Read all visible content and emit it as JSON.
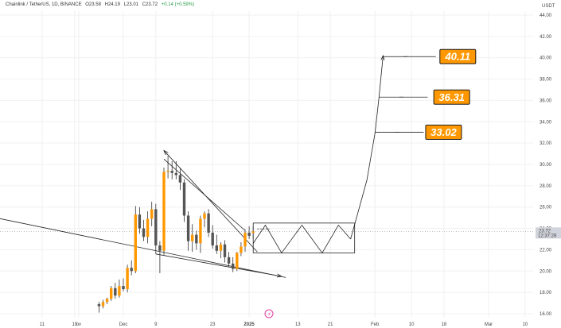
{
  "header": {
    "symbol": "Chainlink / TetherUS, 1D, BINANCE",
    "open": "O23.58",
    "high": "H24.19",
    "low": "L23.01",
    "close": "C23.72",
    "change": "+0.14 (+0.59%)"
  },
  "colors": {
    "up": "#ff9800",
    "down": "#555555",
    "wick": "#333333",
    "line": "#222222",
    "target_fill": "#ff9800",
    "target_border": "#1a1a1a",
    "grid": "#f0f0f0",
    "last_price_bg": "#d1d4dc",
    "event_icon": "#e040a0"
  },
  "chart_data": {
    "type": "candlestick",
    "currency_label": "USDT",
    "ylim": [
      16,
      44
    ],
    "y_ticks": [
      "16.00",
      "18.00",
      "20.00",
      "22.00",
      "24.00",
      "26.00",
      "28.00",
      "30.00",
      "32.00",
      "34.00",
      "36.00",
      "38.00",
      "40.00",
      "42.00",
      "44.00"
    ],
    "x_ticks": [
      {
        "label": "ov",
        "day": -11
      },
      {
        "label": "11",
        "day": -20
      },
      {
        "label": "19",
        "day": -12
      },
      {
        "label": "Dec",
        "day": 0
      },
      {
        "label": "9",
        "day": 8
      },
      {
        "label": "23",
        "day": 22
      },
      {
        "label": "2025",
        "day": 31,
        "bold": true
      },
      {
        "label": "13",
        "day": 43
      },
      {
        "label": "21",
        "day": 51
      },
      {
        "label": "Feb",
        "day": 62
      },
      {
        "label": "10",
        "day": 71
      },
      {
        "label": "18",
        "day": 79
      },
      {
        "label": "Mar",
        "day": 90
      },
      {
        "label": "10",
        "day": 99
      }
    ],
    "last_price": {
      "value": "23.72",
      "countdown": "12:37:28"
    },
    "candles": [
      {
        "day": -6,
        "o": 16.9,
        "h": 17.1,
        "l": 16.1,
        "c": 16.7
      },
      {
        "day": -5,
        "o": 16.7,
        "h": 17.3,
        "l": 16.5,
        "c": 17.1
      },
      {
        "day": -4,
        "o": 17.1,
        "h": 17.5,
        "l": 16.9,
        "c": 17.4
      },
      {
        "day": -3,
        "o": 17.4,
        "h": 18.6,
        "l": 17.2,
        "c": 18.4
      },
      {
        "day": -2,
        "o": 18.4,
        "h": 18.9,
        "l": 17.4,
        "c": 17.7
      },
      {
        "day": -1,
        "o": 17.7,
        "h": 19.2,
        "l": 17.5,
        "c": 18.6
      },
      {
        "day": 0,
        "o": 18.6,
        "h": 19.3,
        "l": 18.1,
        "c": 18.3
      },
      {
        "day": 1,
        "o": 18.3,
        "h": 20.6,
        "l": 18.0,
        "c": 20.3
      },
      {
        "day": 2,
        "o": 20.3,
        "h": 21.0,
        "l": 19.6,
        "c": 20.0
      },
      {
        "day": 3,
        "o": 20.0,
        "h": 26.1,
        "l": 19.8,
        "c": 25.3
      },
      {
        "day": 4,
        "o": 25.3,
        "h": 26.0,
        "l": 23.5,
        "c": 24.0
      },
      {
        "day": 5,
        "o": 24.0,
        "h": 24.8,
        "l": 22.8,
        "c": 23.2
      },
      {
        "day": 6,
        "o": 23.2,
        "h": 25.6,
        "l": 22.6,
        "c": 24.9
      },
      {
        "day": 7,
        "o": 24.9,
        "h": 26.5,
        "l": 24.2,
        "c": 25.8
      },
      {
        "day": 8,
        "o": 25.8,
        "h": 26.3,
        "l": 21.6,
        "c": 22.4
      },
      {
        "day": 9,
        "o": 22.4,
        "h": 22.8,
        "l": 19.8,
        "c": 21.9
      },
      {
        "day": 10,
        "o": 21.9,
        "h": 29.7,
        "l": 21.5,
        "c": 29.3
      },
      {
        "day": 11,
        "o": 29.3,
        "h": 30.8,
        "l": 28.7,
        "c": 29.4
      },
      {
        "day": 12,
        "o": 29.4,
        "h": 30.3,
        "l": 28.6,
        "c": 29.2
      },
      {
        "day": 13,
        "o": 29.2,
        "h": 30.3,
        "l": 28.6,
        "c": 29.0
      },
      {
        "day": 14,
        "o": 29.0,
        "h": 29.6,
        "l": 27.6,
        "c": 28.3
      },
      {
        "day": 15,
        "o": 28.3,
        "h": 28.6,
        "l": 24.6,
        "c": 25.2
      },
      {
        "day": 16,
        "o": 25.2,
        "h": 25.6,
        "l": 21.9,
        "c": 22.8
      },
      {
        "day": 17,
        "o": 22.8,
        "h": 24.4,
        "l": 21.8,
        "c": 23.4
      },
      {
        "day": 18,
        "o": 23.4,
        "h": 23.8,
        "l": 22.0,
        "c": 22.6
      },
      {
        "day": 19,
        "o": 22.6,
        "h": 25.2,
        "l": 21.7,
        "c": 24.9
      },
      {
        "day": 20,
        "o": 24.9,
        "h": 25.6,
        "l": 24.1,
        "c": 25.4
      },
      {
        "day": 21,
        "o": 25.4,
        "h": 25.8,
        "l": 23.2,
        "c": 23.6
      },
      {
        "day": 22,
        "o": 23.6,
        "h": 24.3,
        "l": 22.1,
        "c": 22.4
      },
      {
        "day": 23,
        "o": 22.4,
        "h": 23.4,
        "l": 21.6,
        "c": 21.9
      },
      {
        "day": 24,
        "o": 21.9,
        "h": 22.7,
        "l": 21.2,
        "c": 22.5
      },
      {
        "day": 25,
        "o": 22.5,
        "h": 22.9,
        "l": 20.8,
        "c": 21.3
      },
      {
        "day": 26,
        "o": 21.3,
        "h": 21.8,
        "l": 20.4,
        "c": 20.7
      },
      {
        "day": 27,
        "o": 20.7,
        "h": 21.3,
        "l": 19.9,
        "c": 20.2
      },
      {
        "day": 28,
        "o": 20.2,
        "h": 21.8,
        "l": 20.0,
        "c": 21.7
      },
      {
        "day": 29,
        "o": 21.7,
        "h": 22.7,
        "l": 21.4,
        "c": 22.3
      },
      {
        "day": 30,
        "o": 22.3,
        "h": 23.9,
        "l": 21.8,
        "c": 23.6
      },
      {
        "day": 31,
        "o": 23.6,
        "h": 24.2,
        "l": 23.0,
        "c": 23.3
      },
      {
        "day": 32,
        "o": 23.58,
        "h": 24.19,
        "l": 23.01,
        "c": 23.72
      }
    ],
    "targets": [
      "40.11",
      "36.31",
      "33.02"
    ],
    "annotations": {
      "upper_trendline": [
        [
          10,
          30.5
        ],
        [
          30,
          23.8
        ]
      ],
      "upper_arrow": [
        [
          33,
          21.8
        ],
        [
          10,
          31.3
        ]
      ],
      "lower_trendline": [
        [
          -43,
          25.9
        ],
        [
          40,
          19.4
        ]
      ],
      "lower_wedge": [
        [
          8,
          21.6
        ],
        [
          39,
          19.5
        ]
      ],
      "range_box": {
        "day_from": 32,
        "day_to": 57,
        "price_from": 21.7,
        "price_to": 24.5
      },
      "zigzag": [
        [
          32,
          22.6
        ],
        [
          35,
          24.3
        ],
        [
          39,
          21.7
        ],
        [
          44,
          24.3
        ],
        [
          49,
          21.7
        ],
        [
          53,
          24.3
        ],
        [
          56,
          23.0
        ]
      ],
      "projection": [
        [
          56,
          23.0
        ],
        [
          60,
          28.5
        ],
        [
          62,
          32.9
        ],
        [
          63,
          36.3
        ],
        [
          64,
          40.2
        ]
      ],
      "target_markers": [
        {
          "from_day": 62,
          "price": 33.02
        },
        {
          "from_day": 63,
          "price": 36.31
        },
        {
          "from_day": 64,
          "price": 40.11
        }
      ],
      "right_ticks": [
        {
          "from_day": 67,
          "to_day": 74,
          "price": 33.02
        },
        {
          "from_day": 68,
          "to_day": 75,
          "price": 36.31
        },
        {
          "from_day": 69,
          "to_day": 77,
          "price": 40.11
        }
      ],
      "dashed_tail": {
        "day_from": 33,
        "day_to": 36,
        "price": 23.95
      }
    }
  }
}
